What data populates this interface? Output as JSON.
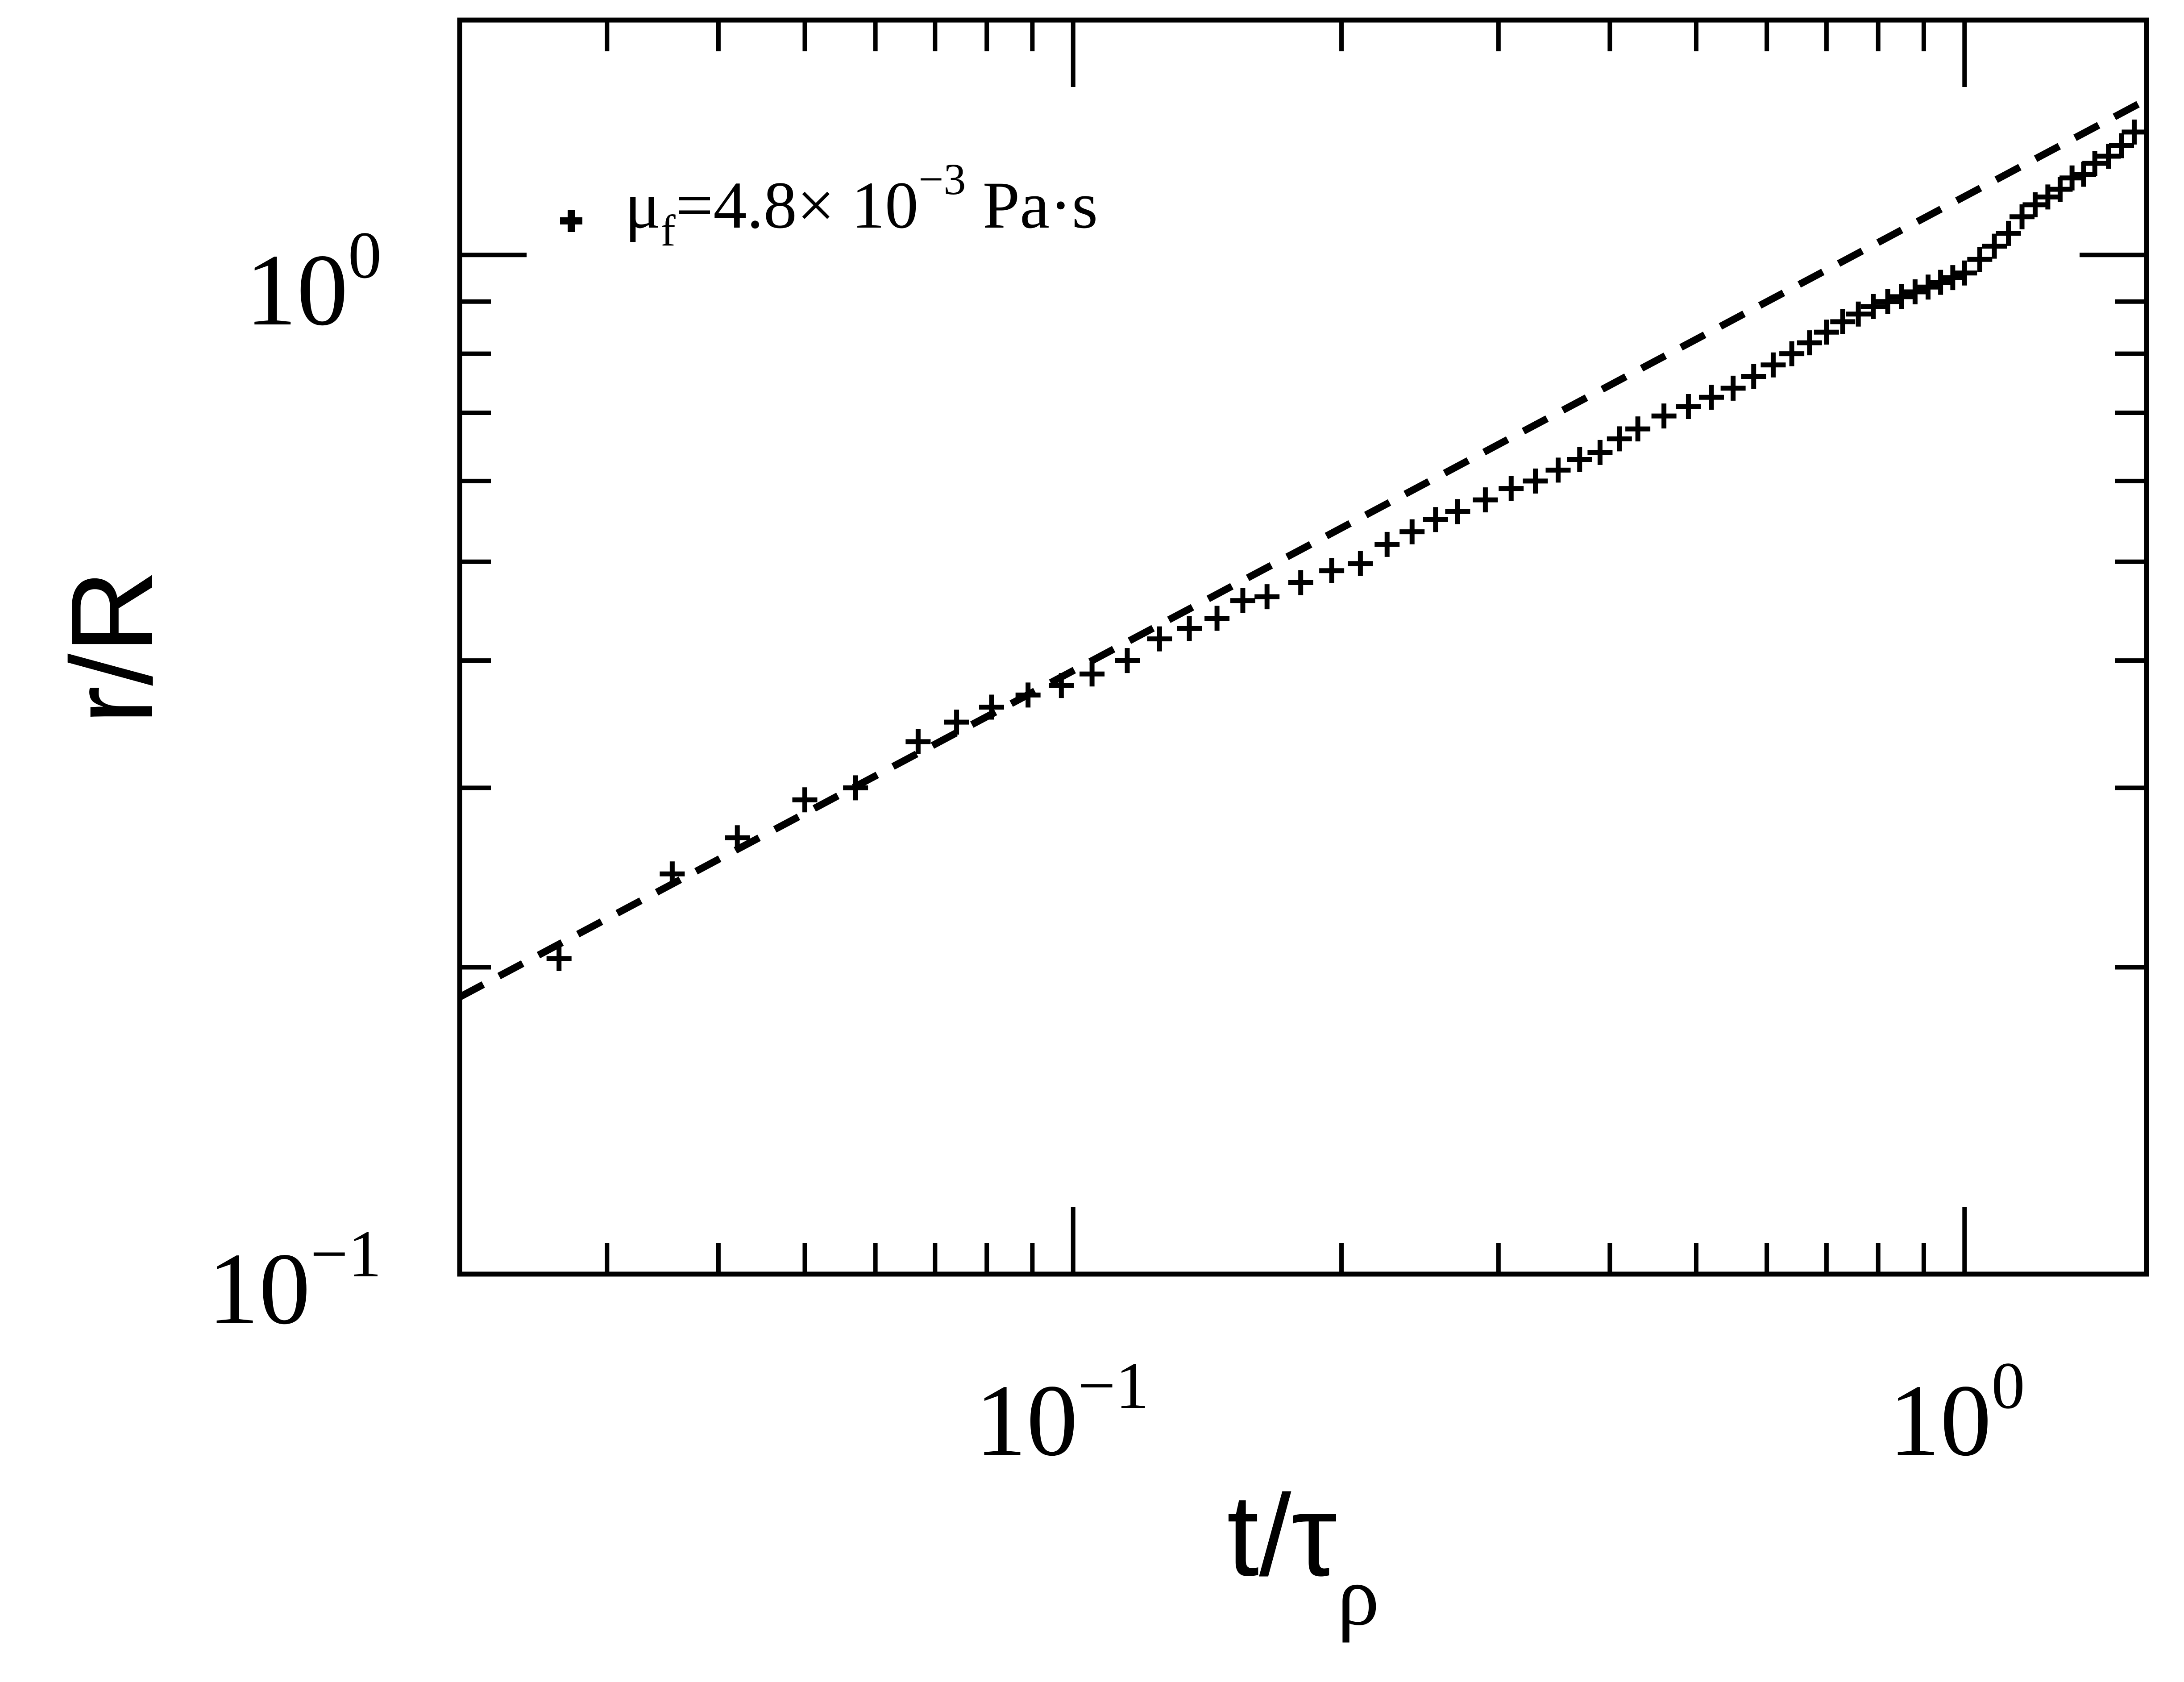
{
  "chart_data": {
    "type": "scatter",
    "title": "",
    "xlabel": "t/τ",
    "xlabel_sub": "ρ",
    "ylabel": "r/R",
    "xscale": "log",
    "yscale": "log",
    "xlim": [
      0.0205,
      1.6
    ],
    "ylim": [
      0.1,
      1.7
    ],
    "xticks": [
      {
        "base": "10",
        "exp": "−1",
        "value": 0.1
      },
      {
        "base": "10",
        "exp": "0",
        "value": 1
      }
    ],
    "yticks": [
      {
        "base": "10",
        "exp": "−1",
        "value": 0.1
      },
      {
        "base": "10",
        "exp": "0",
        "value": 1
      }
    ],
    "grid": false,
    "legend_position": "top-left",
    "series": [
      {
        "name": "μ",
        "name_sub": "f",
        "name_rest": "=4.8× 10",
        "name_exp": "−3",
        "name_unit": " Pa·s",
        "marker": "plus",
        "color": "#000000",
        "x": [
          0.0265,
          0.0355,
          0.042,
          0.05,
          0.057,
          0.067,
          0.074,
          0.081,
          0.089,
          0.097,
          0.105,
          0.115,
          0.125,
          0.135,
          0.145,
          0.155,
          0.165,
          0.18,
          0.195,
          0.21,
          0.225,
          0.24,
          0.255,
          0.27,
          0.29,
          0.31,
          0.33,
          0.35,
          0.37,
          0.39,
          0.41,
          0.43,
          0.46,
          0.49,
          0.52,
          0.55,
          0.58,
          0.61,
          0.64,
          0.67,
          0.7,
          0.73,
          0.76,
          0.79,
          0.82,
          0.85,
          0.88,
          0.91,
          0.94,
          0.97,
          1.0,
          1.04,
          1.08,
          1.12,
          1.16,
          1.2,
          1.24,
          1.28,
          1.32,
          1.36,
          1.4,
          1.45,
          1.5,
          1.55
        ],
        "y": [
          0.204,
          0.247,
          0.268,
          0.292,
          0.3,
          0.333,
          0.348,
          0.36,
          0.37,
          0.378,
          0.388,
          0.4,
          0.42,
          0.43,
          0.44,
          0.458,
          0.462,
          0.477,
          0.49,
          0.498,
          0.52,
          0.535,
          0.55,
          0.56,
          0.575,
          0.59,
          0.6,
          0.615,
          0.63,
          0.64,
          0.66,
          0.675,
          0.695,
          0.71,
          0.725,
          0.74,
          0.76,
          0.78,
          0.8,
          0.82,
          0.84,
          0.86,
          0.875,
          0.89,
          0.9,
          0.91,
          0.92,
          0.93,
          0.94,
          0.95,
          0.96,
          0.99,
          1.02,
          1.05,
          1.09,
          1.12,
          1.14,
          1.16,
          1.19,
          1.2,
          1.23,
          1.25,
          1.28,
          1.32
        ]
      },
      {
        "name": "",
        "line": "dashed",
        "color": "#000000",
        "x": [
          0.0205,
          1.6
        ],
        "y": [
          0.187,
          1.42
        ]
      }
    ]
  }
}
